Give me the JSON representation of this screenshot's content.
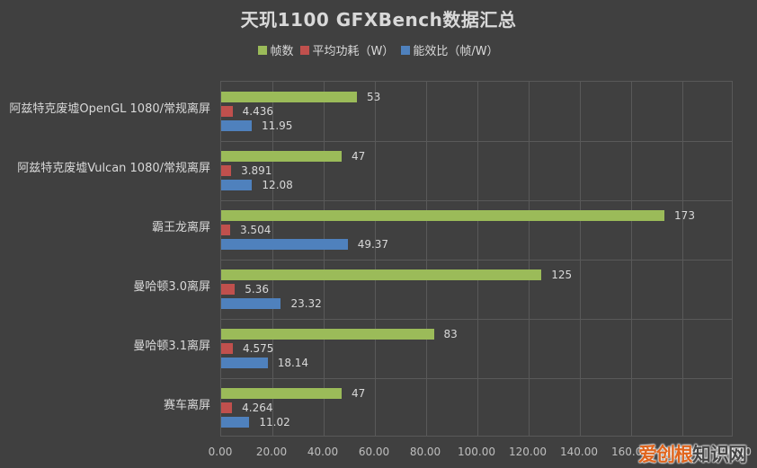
{
  "chart_data": {
    "type": "bar",
    "orientation": "horizontal",
    "title": "天玑1100 GFXBench数据汇总",
    "xlabel": "",
    "ylabel": "",
    "xlim": [
      0,
      200
    ],
    "grid": true,
    "legend_position": "top",
    "categories": [
      "阿兹特克废墟OpenGL 1080/常规离屏",
      "阿兹特克废墟Vulcan 1080/常规离屏",
      "霸王龙离屏",
      "曼哈顿3.0离屏",
      "曼哈顿3.1离屏",
      "赛车离屏"
    ],
    "series": [
      {
        "name": "帧数",
        "color": "#9BBB59",
        "values": [
          53,
          47,
          173,
          125,
          83,
          47
        ],
        "labels": [
          "53",
          "47",
          "173",
          "125",
          "83",
          "47"
        ]
      },
      {
        "name": "平均功耗（W）",
        "color": "#C0504D",
        "values": [
          4.436,
          3.891,
          3.504,
          5.36,
          4.575,
          4.264
        ],
        "labels": [
          "4.436",
          "3.891",
          "3.504",
          "5.36",
          "4.575",
          "4.264"
        ]
      },
      {
        "name": "能效比（帧/W）",
        "color": "#4F81BD",
        "values": [
          11.95,
          12.08,
          49.37,
          23.32,
          18.14,
          11.02
        ],
        "labels": [
          "11.95",
          "12.08",
          "49.37",
          "23.32",
          "18.14",
          "11.02"
        ]
      }
    ],
    "x_ticks": [
      "0.00",
      "20.00",
      "40.00",
      "60.00",
      "80.00",
      "100.00",
      "120.00",
      "140.00",
      "160.00",
      "180.00",
      "200.00"
    ]
  },
  "watermark": {
    "part1": "爱创根",
    "part2": "知识网"
  }
}
